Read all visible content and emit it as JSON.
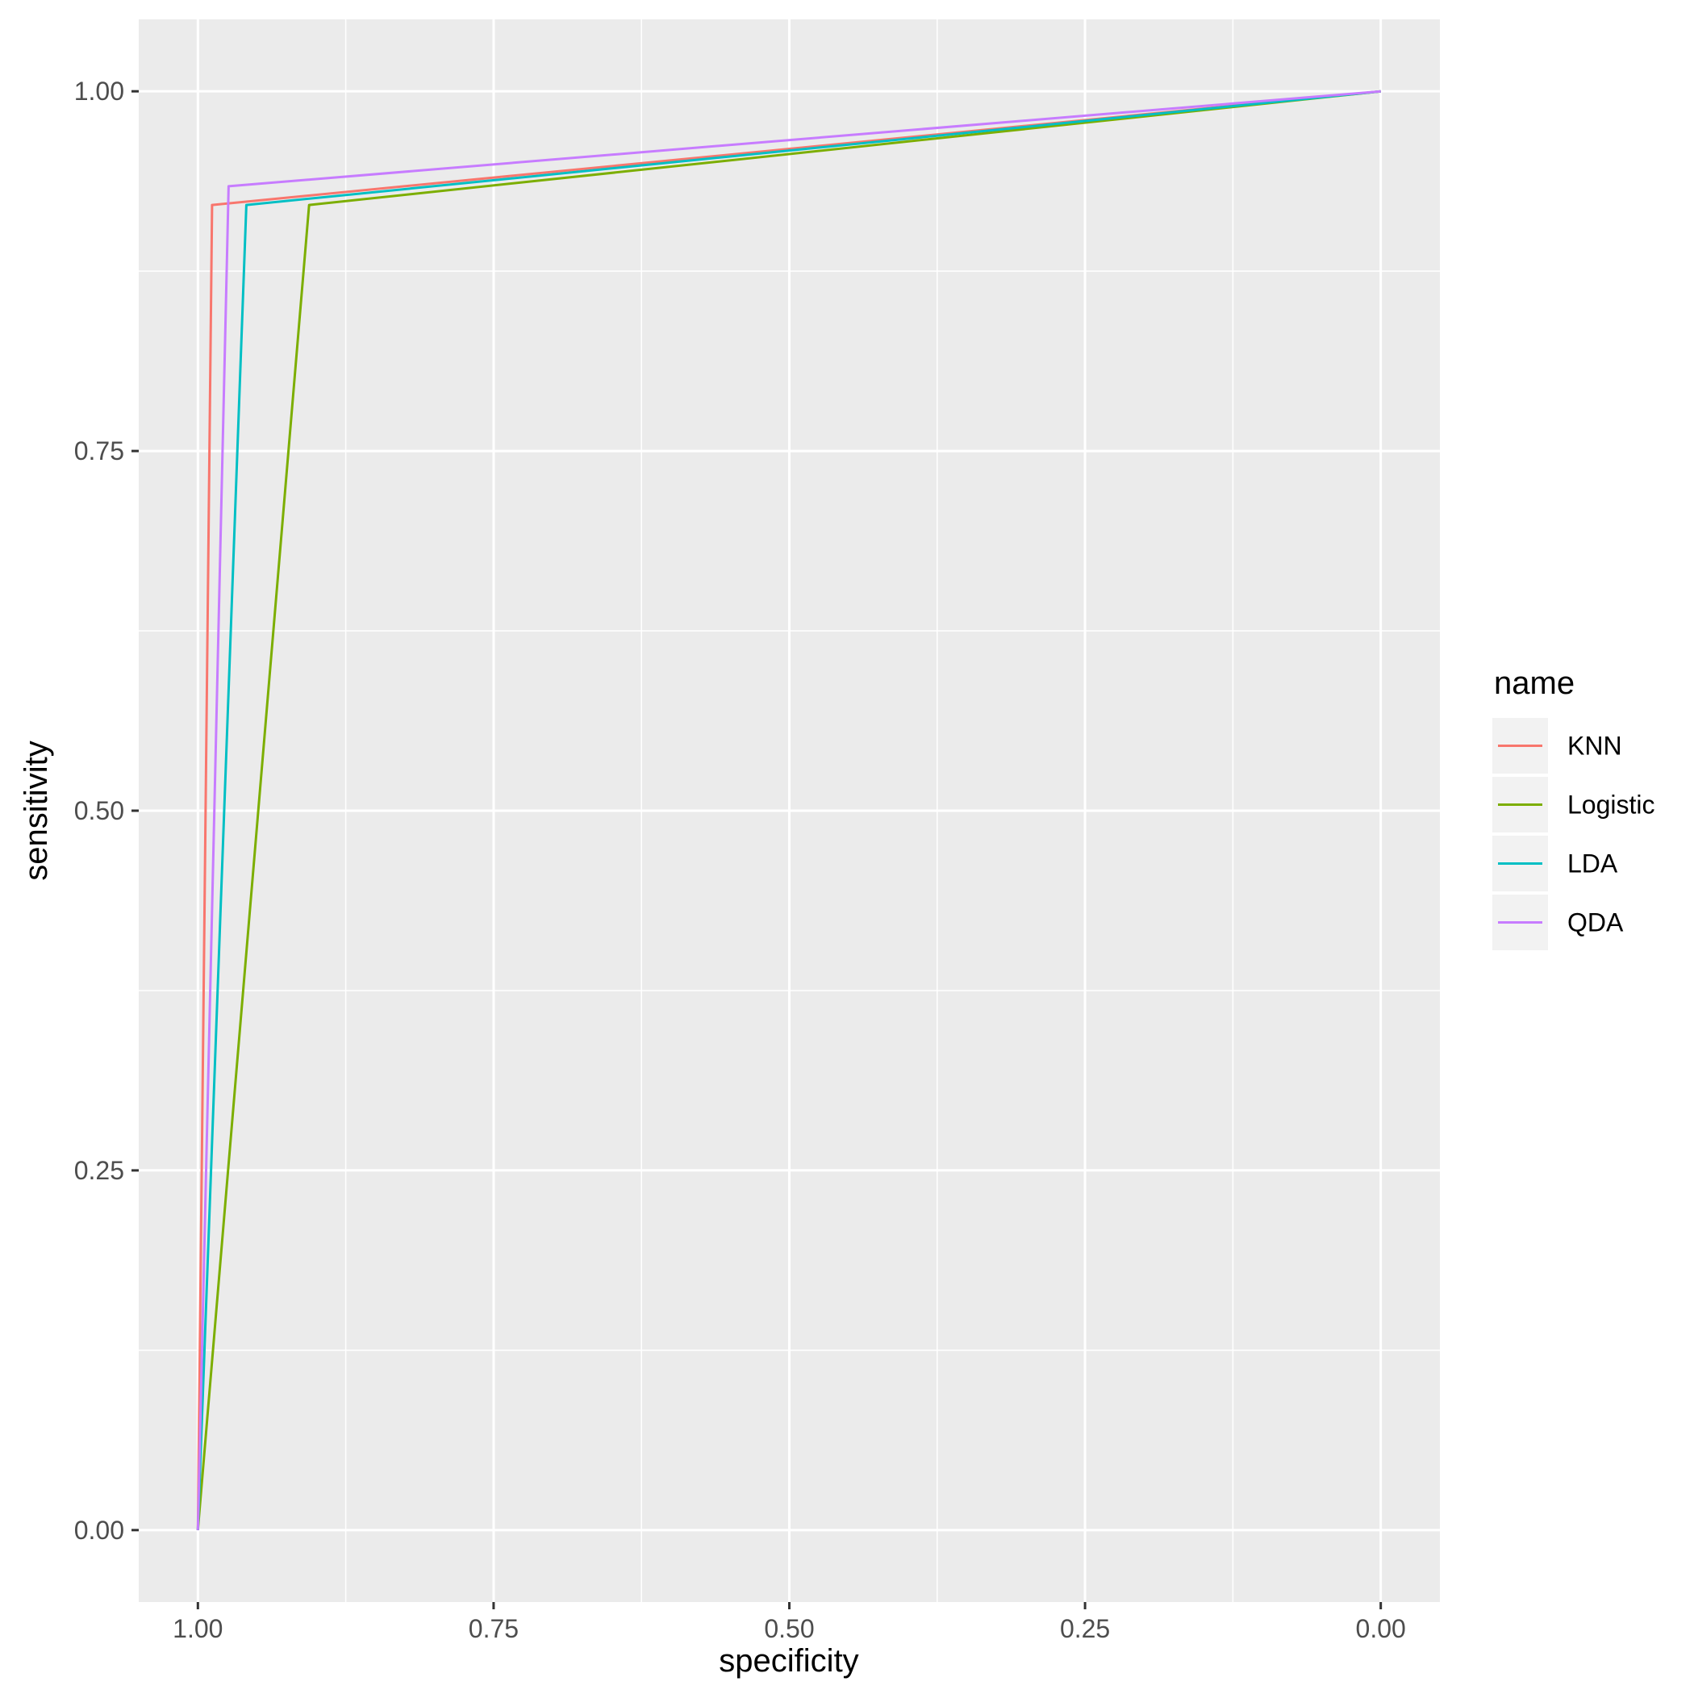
{
  "chart_data": {
    "type": "line",
    "title": "",
    "xlabel": "specificity",
    "ylabel": "sensitivity",
    "x_reversed": true,
    "xlim": [
      1.05,
      -0.05
    ],
    "ylim": [
      -0.05,
      1.05
    ],
    "x_ticks": [
      1.0,
      0.75,
      0.5,
      0.25,
      0.0
    ],
    "x_tick_labels": [
      "1.00",
      "0.75",
      "0.50",
      "0.25",
      "0.00"
    ],
    "y_ticks": [
      0.0,
      0.25,
      0.5,
      0.75,
      1.0
    ],
    "y_tick_labels": [
      "0.00",
      "0.25",
      "0.50",
      "0.75",
      "1.00"
    ],
    "grid": true,
    "legend": {
      "title": "name",
      "position": "right"
    },
    "series": [
      {
        "name": "KNN",
        "color": "#F8766D",
        "x": [
          1.0,
          0.988,
          0.0
        ],
        "y": [
          0.0,
          0.921,
          1.0
        ]
      },
      {
        "name": "Logistic",
        "color": "#7CAE00",
        "x": [
          1.0,
          0.906,
          0.0
        ],
        "y": [
          0.0,
          0.921,
          1.0
        ]
      },
      {
        "name": "LDA",
        "color": "#00BFC4",
        "x": [
          1.0,
          0.959,
          0.0
        ],
        "y": [
          0.0,
          0.921,
          1.0
        ]
      },
      {
        "name": "QDA",
        "color": "#C77CFF",
        "x": [
          1.0,
          0.974,
          0.0
        ],
        "y": [
          0.0,
          0.934,
          1.0
        ]
      }
    ]
  }
}
